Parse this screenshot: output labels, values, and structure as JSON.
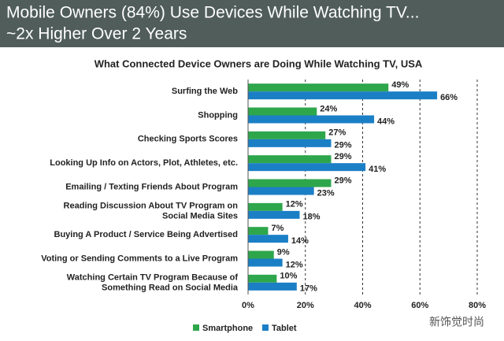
{
  "header": [
    "Mobile Owners (84%) Use Devices While Watching TV...",
    "~2x Higher Over 2 Years"
  ],
  "watermark": "新饰觉时尚",
  "chart_data": {
    "type": "hbar",
    "title": "What Connected Device Owners are Doing While Watching TV, USA",
    "categories": [
      "Surfing the Web",
      "Shopping",
      "Checking Sports Scores",
      "Looking Up Info on Actors, Plot, Athletes, etc.",
      "Emailing / Texting Friends About Program",
      "Reading Discussion About TV Program on\nSocial Media Sites",
      "Buying A Product / Service Being Advertised",
      "Voting or Sending Comments to a Live Program",
      "Watching Certain TV Program Because of\nSomething Read on Social Media"
    ],
    "series": [
      {
        "name": "Smartphone",
        "color": "#2ea64c",
        "values": [
          49,
          24,
          27,
          29,
          29,
          12,
          7,
          9,
          10
        ],
        "value_labels": [
          "49%",
          "24%",
          "27%",
          "29%",
          "29%",
          "12%",
          "7%",
          "9%",
          "10%"
        ]
      },
      {
        "name": "Tablet",
        "color": "#1b7fc6",
        "values": [
          66,
          44,
          29,
          41,
          23,
          18,
          14,
          12,
          17
        ],
        "value_labels": [
          "66%",
          "44%",
          "29%",
          "41%",
          "23%",
          "18%",
          "14%",
          "12%",
          "17%"
        ]
      }
    ],
    "xlim": [
      0,
      80
    ],
    "xticks": [
      {
        "value": 0,
        "label": "0%"
      },
      {
        "value": 20,
        "label": "20%"
      },
      {
        "value": 40,
        "label": "40%"
      },
      {
        "value": 60,
        "label": "60%"
      },
      {
        "value": 80,
        "label": "80%"
      }
    ],
    "grid": true
  }
}
